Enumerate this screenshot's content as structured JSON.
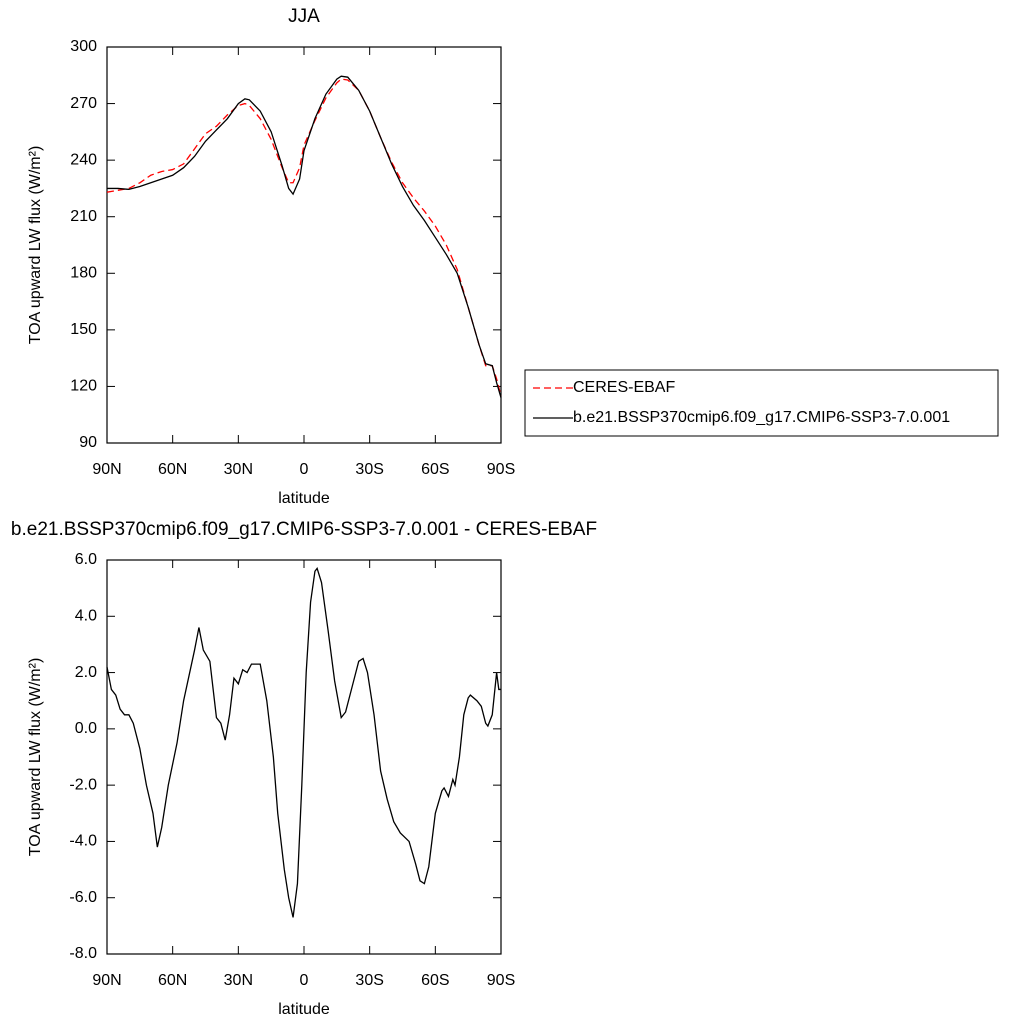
{
  "chart_data": [
    {
      "type": "line",
      "title": "JJA",
      "xlabel": "latitude",
      "ylabel": "TOA upward LW flux (W/m²)",
      "x": [
        90,
        85,
        80,
        75,
        70,
        65,
        60,
        55,
        50,
        45,
        40,
        35,
        30,
        27,
        25,
        20,
        15,
        10,
        7,
        5,
        2,
        0,
        -5,
        -10,
        -15,
        -17,
        -20,
        -25,
        -30,
        -35,
        -40,
        -45,
        -50,
        -55,
        -60,
        -65,
        -70,
        -75,
        -80,
        -83,
        -86,
        -88,
        -90
      ],
      "series": [
        {
          "name": "CERES-EBAF",
          "color": "#ff0000",
          "dash": true,
          "values": [
            223,
            224,
            225,
            228,
            232,
            234,
            235,
            238,
            246,
            254,
            258,
            264,
            269,
            270,
            269,
            262,
            251,
            236,
            228,
            228,
            236,
            248,
            261,
            273,
            281,
            283,
            282.5,
            277,
            266,
            252,
            239,
            228,
            220,
            213,
            205,
            195,
            182,
            162,
            142,
            131,
            131,
            124,
            115
          ]
        },
        {
          "name": "b.e21.BSSP370cmip6.f09_g17.CMIP6-SSP3-7.0.001",
          "color": "#000000",
          "dash": false,
          "values": [
            225,
            225,
            224.5,
            226,
            228,
            230,
            232,
            236,
            242,
            250,
            256,
            262,
            270,
            272.5,
            272,
            266,
            255,
            237,
            225,
            222,
            230,
            245,
            262,
            275,
            283,
            284.5,
            284,
            277,
            266,
            252,
            238,
            226,
            216,
            208,
            199,
            190,
            180,
            162,
            142,
            132,
            131,
            122,
            114
          ]
        }
      ],
      "xlim": [
        90,
        -90
      ],
      "xticks": [
        {
          "value": 90,
          "label": "90N"
        },
        {
          "value": 60,
          "label": "60N"
        },
        {
          "value": 30,
          "label": "30N"
        },
        0,
        {
          "value": -30,
          "label": "30S"
        },
        {
          "value": -60,
          "label": "60S"
        },
        {
          "value": -90,
          "label": "90S"
        }
      ],
      "ylim": [
        90,
        300
      ],
      "yticks": [
        90,
        120,
        150,
        180,
        210,
        240,
        270,
        300
      ],
      "legend": "right"
    },
    {
      "type": "line",
      "title": "b.e21.BSSP370cmip6.f09_g17.CMIP6-SSP3-7.0.001 - CERES-EBAF",
      "xlabel": "latitude",
      "ylabel": "TOA upward LW flux (W/m²)",
      "x": [
        90,
        88,
        86,
        84,
        82,
        80,
        78,
        75,
        72,
        69,
        67,
        65,
        62,
        58,
        55,
        50,
        48,
        46,
        43,
        40,
        38,
        36,
        34,
        32,
        30,
        28,
        26,
        24,
        20,
        17,
        14,
        12,
        9,
        7,
        5,
        3,
        1,
        -1,
        -3,
        -5,
        -6,
        -8,
        -11,
        -14,
        -17,
        -19,
        -22,
        -25,
        -27,
        -29,
        -32,
        -35,
        -38,
        -41,
        -44,
        -48,
        -51,
        -53,
        -55,
        -57,
        -60,
        -63,
        -64,
        -66,
        -68,
        -69,
        -71,
        -73,
        -75,
        -76,
        -79,
        -81,
        -83,
        -84,
        -86,
        -88,
        -89,
        -90
      ],
      "series": [
        {
          "color": "#000000",
          "dash": false,
          "values": [
            2.2,
            1.4,
            1.2,
            0.7,
            0.5,
            0.5,
            0.2,
            -0.7,
            -2.0,
            -3.0,
            -4.2,
            -3.5,
            -2.0,
            -0.5,
            1.0,
            2.8,
            3.6,
            2.8,
            2.4,
            0.4,
            0.2,
            -0.4,
            0.5,
            1.8,
            1.6,
            2.1,
            2.0,
            2.3,
            2.3,
            1.0,
            -1.0,
            -3.0,
            -5.0,
            -6.0,
            -6.7,
            -5.5,
            -2.0,
            2.0,
            4.5,
            5.6,
            5.7,
            5.2,
            3.5,
            1.7,
            0.4,
            0.6,
            1.5,
            2.4,
            2.5,
            2.0,
            0.5,
            -1.5,
            -2.5,
            -3.3,
            -3.7,
            -4.0,
            -4.8,
            -5.4,
            -5.5,
            -4.9,
            -3.0,
            -2.2,
            -2.1,
            -2.4,
            -1.8,
            -2.0,
            -1.0,
            0.5,
            1.1,
            1.2,
            1.0,
            0.8,
            0.2,
            0.1,
            0.5,
            2.0,
            1.4,
            1.4
          ]
        }
      ],
      "xlim": [
        90,
        -90
      ],
      "xticks": [
        {
          "value": 90,
          "label": "90N"
        },
        {
          "value": 60,
          "label": "60N"
        },
        {
          "value": 30,
          "label": "30N"
        },
        0,
        {
          "value": -30,
          "label": "30S"
        },
        {
          "value": -60,
          "label": "60S"
        },
        {
          "value": -90,
          "label": "90S"
        }
      ],
      "ylim": [
        -8,
        6
      ],
      "yticks": [
        {
          "value": -8,
          "label": "-8.0"
        },
        {
          "value": -6,
          "label": "-6.0"
        },
        {
          "value": -4,
          "label": "-4.0"
        },
        {
          "value": -2,
          "label": "-2.0"
        },
        {
          "value": 0,
          "label": "0.0"
        },
        {
          "value": 2,
          "label": "2.0"
        },
        {
          "value": 4,
          "label": "4.0"
        },
        {
          "value": 6,
          "label": "6.0"
        }
      ]
    }
  ]
}
